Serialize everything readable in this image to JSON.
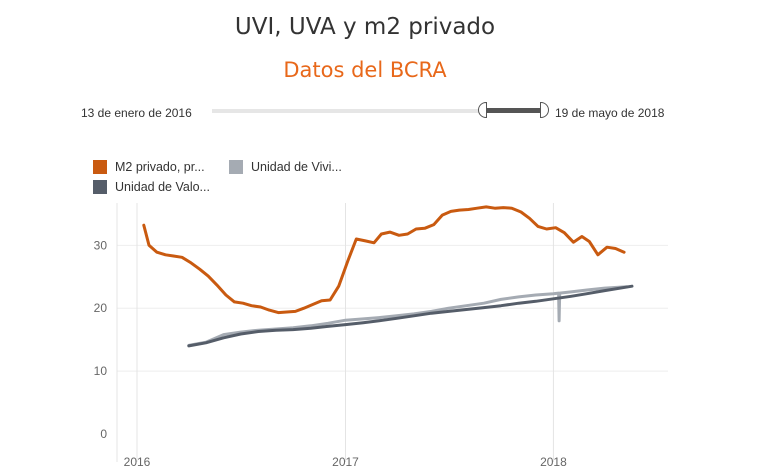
{
  "header": {
    "title": "UVI, UVA y m2 privado",
    "subtitle": "Datos del BCRA",
    "subtitle_color": "#e8681a"
  },
  "date_filter": {
    "start_label": "13 de enero de 2016",
    "end_label": "19 de mayo de 2018"
  },
  "legend": {
    "items": [
      {
        "label": "M2 privado, pr...",
        "color": "#c95a10"
      },
      {
        "label": "Unidad de Vivi...",
        "color": "#a5abb3"
      },
      {
        "label": "Unidad de Valo...",
        "color": "#555d69"
      }
    ]
  },
  "chart_data": {
    "type": "line",
    "ylim": [
      0,
      38
    ],
    "yticks": [
      0,
      10,
      20,
      30
    ],
    "xticks": [
      "2016",
      "2017",
      "2018"
    ],
    "grid": true,
    "series": [
      {
        "name": "M2 privado, pr...",
        "color": "#c95a10",
        "points": [
          [
            "2016-01-13",
            33.2
          ],
          [
            "2016-01-22",
            30.0
          ],
          [
            "2016-02-05",
            28.9
          ],
          [
            "2016-02-20",
            28.5
          ],
          [
            "2016-03-05",
            28.3
          ],
          [
            "2016-03-20",
            28.1
          ],
          [
            "2016-04-05",
            27.2
          ],
          [
            "2016-04-20",
            26.2
          ],
          [
            "2016-05-05",
            25.1
          ],
          [
            "2016-05-20",
            23.7
          ],
          [
            "2016-06-05",
            22.1
          ],
          [
            "2016-06-20",
            21.0
          ],
          [
            "2016-07-05",
            20.8
          ],
          [
            "2016-07-20",
            20.4
          ],
          [
            "2016-08-05",
            20.2
          ],
          [
            "2016-08-20",
            19.7
          ],
          [
            "2016-09-05",
            19.3
          ],
          [
            "2016-09-20",
            19.4
          ],
          [
            "2016-10-05",
            19.5
          ],
          [
            "2016-10-20",
            20.0
          ],
          [
            "2016-11-05",
            20.6
          ],
          [
            "2016-11-20",
            21.2
          ],
          [
            "2016-12-05",
            21.3
          ],
          [
            "2016-12-20",
            23.5
          ],
          [
            "2017-01-05",
            27.5
          ],
          [
            "2017-01-20",
            31.0
          ],
          [
            "2017-02-05",
            30.7
          ],
          [
            "2017-02-20",
            30.4
          ],
          [
            "2017-03-05",
            31.8
          ],
          [
            "2017-03-20",
            32.1
          ],
          [
            "2017-04-05",
            31.6
          ],
          [
            "2017-04-20",
            31.8
          ],
          [
            "2017-05-05",
            32.6
          ],
          [
            "2017-05-20",
            32.7
          ],
          [
            "2017-06-05",
            33.3
          ],
          [
            "2017-06-20",
            34.8
          ],
          [
            "2017-07-05",
            35.4
          ],
          [
            "2017-07-20",
            35.6
          ],
          [
            "2017-08-05",
            35.7
          ],
          [
            "2017-08-20",
            35.9
          ],
          [
            "2017-09-05",
            36.1
          ],
          [
            "2017-09-20",
            35.9
          ],
          [
            "2017-10-05",
            36.0
          ],
          [
            "2017-10-20",
            35.9
          ],
          [
            "2017-11-05",
            35.3
          ],
          [
            "2017-11-20",
            34.3
          ],
          [
            "2017-12-05",
            33.0
          ],
          [
            "2017-12-20",
            32.6
          ],
          [
            "2018-01-05",
            32.8
          ],
          [
            "2018-01-20",
            32.0
          ],
          [
            "2018-02-05",
            30.5
          ],
          [
            "2018-02-20",
            31.4
          ],
          [
            "2018-03-05",
            30.6
          ],
          [
            "2018-03-20",
            28.5
          ],
          [
            "2018-04-05",
            29.7
          ],
          [
            "2018-04-20",
            29.5
          ],
          [
            "2018-05-05",
            28.9
          ]
        ]
      },
      {
        "name": "Unidad de Vivi...",
        "color": "#a5abb3",
        "points": [
          [
            "2016-04-01",
            14.1
          ],
          [
            "2016-05-01",
            14.6
          ],
          [
            "2016-06-01",
            15.8
          ],
          [
            "2016-07-01",
            16.2
          ],
          [
            "2016-08-01",
            16.5
          ],
          [
            "2016-09-01",
            16.7
          ],
          [
            "2016-10-01",
            16.9
          ],
          [
            "2016-11-01",
            17.2
          ],
          [
            "2016-12-01",
            17.6
          ],
          [
            "2017-01-01",
            18.1
          ],
          [
            "2017-02-01",
            18.3
          ],
          [
            "2017-03-01",
            18.5
          ],
          [
            "2017-04-01",
            18.8
          ],
          [
            "2017-05-01",
            19.1
          ],
          [
            "2017-06-01",
            19.5
          ],
          [
            "2017-07-01",
            20.0
          ],
          [
            "2017-08-01",
            20.4
          ],
          [
            "2017-09-01",
            20.8
          ],
          [
            "2017-10-01",
            21.4
          ],
          [
            "2017-11-01",
            21.8
          ],
          [
            "2017-12-01",
            22.1
          ],
          [
            "2018-01-01",
            22.3
          ],
          [
            "2018-01-10",
            22.4
          ],
          [
            "2018-01-11",
            18.0
          ],
          [
            "2018-01-12",
            22.4
          ],
          [
            "2018-02-01",
            22.6
          ],
          [
            "2018-03-01",
            22.9
          ],
          [
            "2018-04-01",
            23.2
          ],
          [
            "2018-05-10",
            23.4
          ]
        ]
      },
      {
        "name": "Unidad de Valo...",
        "color": "#555d69",
        "points": [
          [
            "2016-04-01",
            14.0
          ],
          [
            "2016-05-01",
            14.5
          ],
          [
            "2016-06-01",
            15.3
          ],
          [
            "2016-07-01",
            15.9
          ],
          [
            "2016-08-01",
            16.3
          ],
          [
            "2016-09-01",
            16.5
          ],
          [
            "2016-10-01",
            16.6
          ],
          [
            "2016-11-01",
            16.8
          ],
          [
            "2016-12-01",
            17.1
          ],
          [
            "2017-01-01",
            17.4
          ],
          [
            "2017-02-01",
            17.7
          ],
          [
            "2017-03-01",
            18.0
          ],
          [
            "2017-04-01",
            18.4
          ],
          [
            "2017-05-01",
            18.8
          ],
          [
            "2017-06-01",
            19.2
          ],
          [
            "2017-07-01",
            19.5
          ],
          [
            "2017-08-01",
            19.8
          ],
          [
            "2017-09-01",
            20.1
          ],
          [
            "2017-10-01",
            20.4
          ],
          [
            "2017-11-01",
            20.8
          ],
          [
            "2017-12-01",
            21.1
          ],
          [
            "2018-01-01",
            21.5
          ],
          [
            "2018-02-01",
            21.9
          ],
          [
            "2018-03-01",
            22.3
          ],
          [
            "2018-04-01",
            22.8
          ],
          [
            "2018-05-19",
            23.5
          ]
        ]
      }
    ]
  }
}
